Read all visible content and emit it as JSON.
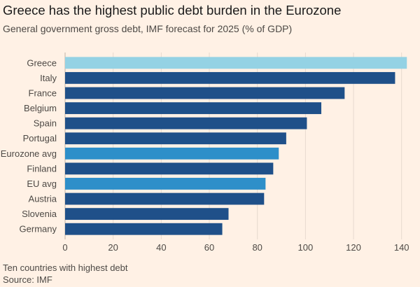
{
  "chart_data": {
    "type": "bar",
    "orientation": "horizontal",
    "title": "Greece has the highest public debt burden in the Eurozone",
    "subtitle": "General government gross debt, IMF forecast for 2025 (% of GDP)",
    "categories": [
      "Greece",
      "Italy",
      "France",
      "Belgium",
      "Spain",
      "Portugal",
      "Eurozone avg",
      "Finland",
      "EU avg",
      "Austria",
      "Slovenia",
      "Germany"
    ],
    "values": [
      142.2,
      137.3,
      116.3,
      106.6,
      100.6,
      92.0,
      88.9,
      86.6,
      83.4,
      82.8,
      68.0,
      65.4
    ],
    "bar_colors": [
      "#94d2e4",
      "#1f5089",
      "#1f5089",
      "#1f5089",
      "#1f5089",
      "#1f5089",
      "#2e8fc9",
      "#1f5089",
      "#2e8fc9",
      "#1f5089",
      "#1f5089",
      "#1f5089"
    ],
    "x_ticks": [
      "0",
      "20",
      "40",
      "60",
      "80",
      "100",
      "120",
      "140"
    ],
    "xlim": [
      0,
      143
    ],
    "xlabel": "",
    "ylabel": "",
    "grid": true,
    "footnote": "Ten countries with highest debt",
    "source": "Source: IMF"
  },
  "colors": {
    "background": "#fff1e5",
    "grid": "#e6d9ce",
    "text": "#4d4945"
  }
}
